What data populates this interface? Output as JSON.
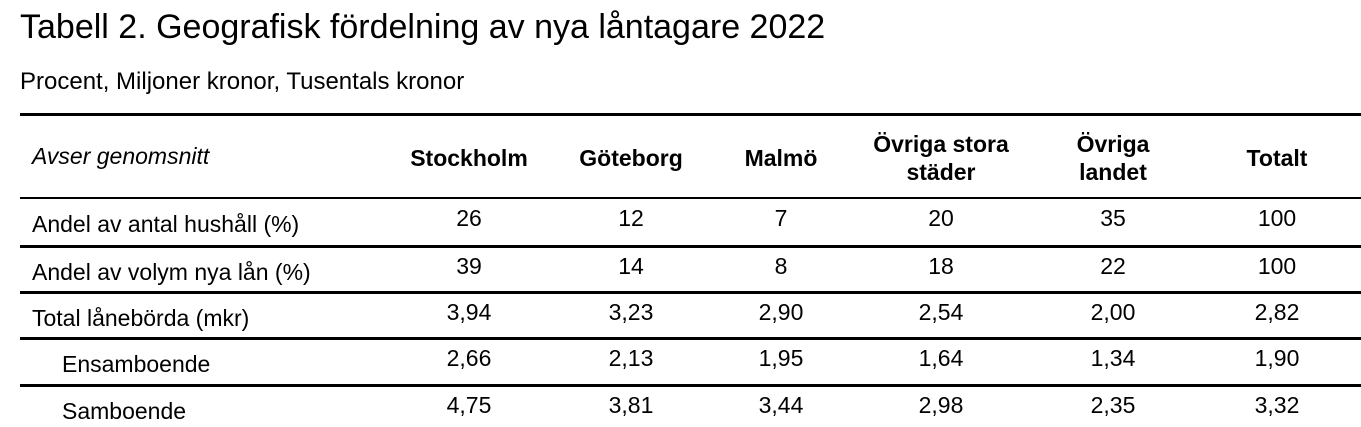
{
  "header": {
    "title": "Tabell 2. Geografisk fördelning av nya låntagare 2022",
    "subtitle": "Procent, Miljoner kronor, Tusentals kronor"
  },
  "table": {
    "columns": [
      "Avser genomsnitt",
      "Stockholm",
      "Göteborg",
      "Malmö",
      "Övriga stora städer",
      "Övriga landet",
      "Totalt"
    ],
    "rows": [
      [
        "Andel av antal hushåll (%)",
        "26",
        "12",
        "7",
        "20",
        "35",
        "100"
      ],
      [
        "Andel av volym nya lån (%)",
        "39",
        "14",
        "8",
        "18",
        "22",
        "100"
      ],
      [
        "Total lånebörda (mkr)",
        "3,94",
        "3,23",
        "2,90",
        "2,54",
        "2,00",
        "2,82"
      ],
      [
        "Ensamboende",
        "2,66",
        "2,13",
        "1,95",
        "1,64",
        "1,34",
        "1,90"
      ],
      [
        "Samboende",
        "4,75",
        "3,81",
        "3,44",
        "2,98",
        "2,35",
        "3,32"
      ]
    ]
  }
}
